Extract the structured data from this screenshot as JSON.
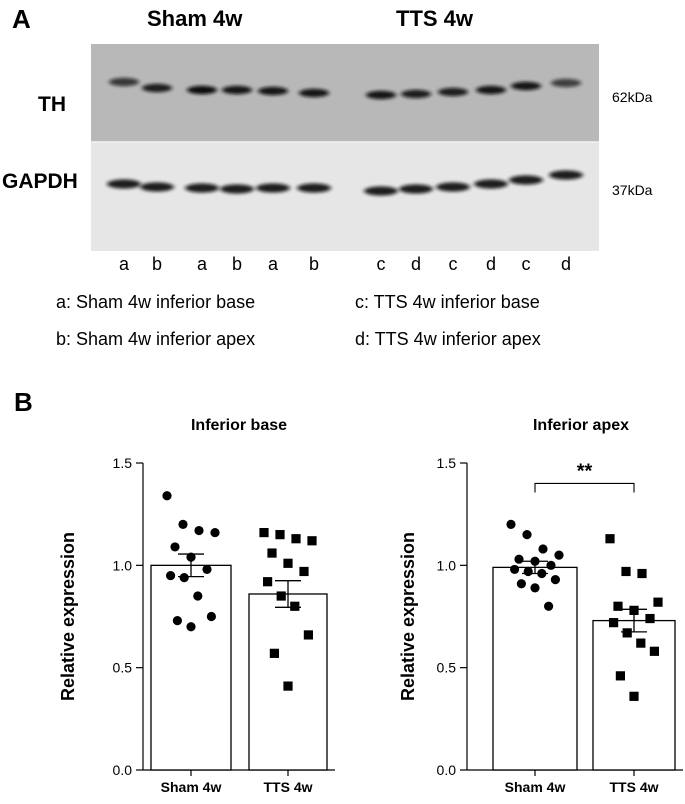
{
  "panel_a": {
    "letter": "A",
    "group_left": "Sham 4w",
    "group_right": "TTS 4w",
    "band_top": "TH",
    "band_bottom": "GAPDH",
    "kda_top": "62kDa",
    "kda_bottom": "37kDa",
    "lanes": [
      "a",
      "b",
      "a",
      "b",
      "a",
      "b",
      "c",
      "d",
      "c",
      "d",
      "c",
      "d"
    ],
    "legend": [
      "a: Sham 4w inferior base",
      "c: TTS 4w inferior base",
      "b: Sham 4w inferior apex",
      "d: TTS 4w inferior apex"
    ],
    "blot_colors": {
      "top_bg": "#b8b8b8",
      "bottom_bg": "#e6e6e6",
      "band": "#111111"
    }
  },
  "panel_b": {
    "letter": "B"
  },
  "chart_data": [
    {
      "type": "bar",
      "title": "Inferior base",
      "ylabel": "Relative expression",
      "ylim": [
        0,
        1.5
      ],
      "yticks": [
        "0.0",
        "0.5",
        "1.0",
        "1.5"
      ],
      "categories": [
        "Sham 4w",
        "TTS 4w"
      ],
      "values": [
        1.0,
        0.86
      ],
      "sem": [
        0.055,
        0.065
      ],
      "points": [
        [
          1.34,
          1.2,
          1.17,
          1.16,
          1.09,
          1.04,
          0.98,
          0.95,
          0.94,
          0.85,
          0.75,
          0.73,
          0.7
        ],
        [
          1.16,
          1.15,
          1.13,
          1.12,
          1.06,
          1.01,
          0.97,
          0.92,
          0.85,
          0.8,
          0.66,
          0.57,
          0.41
        ]
      ],
      "markers": [
        "circle",
        "square"
      ],
      "significance": null
    },
    {
      "type": "bar",
      "title": "Inferior apex",
      "ylabel": "Relative expression",
      "ylim": [
        0,
        1.5
      ],
      "yticks": [
        "0.0",
        "0.5",
        "1.0",
        "1.5"
      ],
      "categories": [
        "Sham 4w",
        "TTS 4w"
      ],
      "values": [
        0.99,
        0.73
      ],
      "sem": [
        0.03,
        0.055
      ],
      "points": [
        [
          1.2,
          1.15,
          1.08,
          1.05,
          1.03,
          1.02,
          1.0,
          0.98,
          0.97,
          0.96,
          0.93,
          0.91,
          0.89,
          0.8
        ],
        [
          1.13,
          0.97,
          0.96,
          0.82,
          0.8,
          0.78,
          0.74,
          0.72,
          0.67,
          0.62,
          0.58,
          0.46,
          0.36
        ]
      ],
      "markers": [
        "circle",
        "square"
      ],
      "significance": "**"
    }
  ]
}
